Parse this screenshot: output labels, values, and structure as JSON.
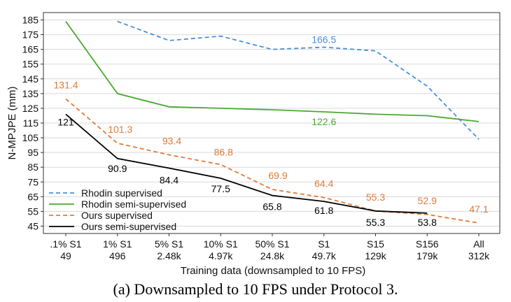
{
  "caption": "(a) Downsampled to 10 FPS under Protocol 3.",
  "chart_data": {
    "type": "line",
    "xlabel": "Training data (downsampled to 10 FPS)",
    "ylabel": "N-MPJPE (mm)",
    "ylim": [
      40,
      190
    ],
    "yticks": [
      45,
      55,
      65,
      75,
      85,
      95,
      105,
      115,
      125,
      135,
      145,
      155,
      165,
      175,
      185
    ],
    "categories": [
      [
        "",
        ".1% S1",
        "49"
      ],
      [
        "",
        "1% S1",
        "496"
      ],
      [
        "",
        "5% S1",
        "2.48k"
      ],
      [
        "",
        "10% S1",
        "4.97k"
      ],
      [
        "",
        "50% S1",
        "24.8k"
      ],
      [
        "",
        "S1",
        "49.7k"
      ],
      [
        "",
        "S15",
        "129k"
      ],
      [
        "",
        "S156",
        "179k"
      ],
      [
        "",
        "All",
        "312k"
      ]
    ],
    "grid": "horizontal",
    "legend_position": "bottom-left",
    "series": [
      {
        "name": "Rhodin supervised",
        "color": "#4a90d9",
        "dash": true,
        "values": [
          null,
          184,
          171,
          174,
          165,
          166.5,
          164,
          140,
          104
        ],
        "labels": [
          null,
          null,
          null,
          null,
          null,
          "166.5",
          null,
          null,
          null
        ]
      },
      {
        "name": "Rhodin semi-supervised",
        "color": "#4aa832",
        "dash": false,
        "values": [
          184,
          135,
          126,
          125,
          124,
          122.6,
          121,
          120,
          116
        ],
        "labels": [
          null,
          null,
          null,
          null,
          null,
          "122.6",
          null,
          null,
          null
        ]
      },
      {
        "name": "Ours supervised",
        "color": "#e07b39",
        "dash": true,
        "values": [
          131.4,
          101.3,
          93.4,
          86.8,
          69.9,
          64.4,
          55.3,
          52.9,
          47.1
        ],
        "labels": [
          "131.4",
          "101.3",
          "93.4",
          "86.8",
          "69.9",
          "64.4",
          "55.3",
          "52.9",
          "47.1"
        ]
      },
      {
        "name": "Ours semi-supervised",
        "color": "#000000",
        "dash": false,
        "values": [
          121,
          90.9,
          84.4,
          77.5,
          65.8,
          61.8,
          55.3,
          53.8,
          null
        ],
        "labels": [
          "121",
          "90.9",
          "84.4",
          "77.5",
          "65.8",
          "61.8",
          "55.3",
          "53.8",
          null
        ]
      }
    ]
  }
}
